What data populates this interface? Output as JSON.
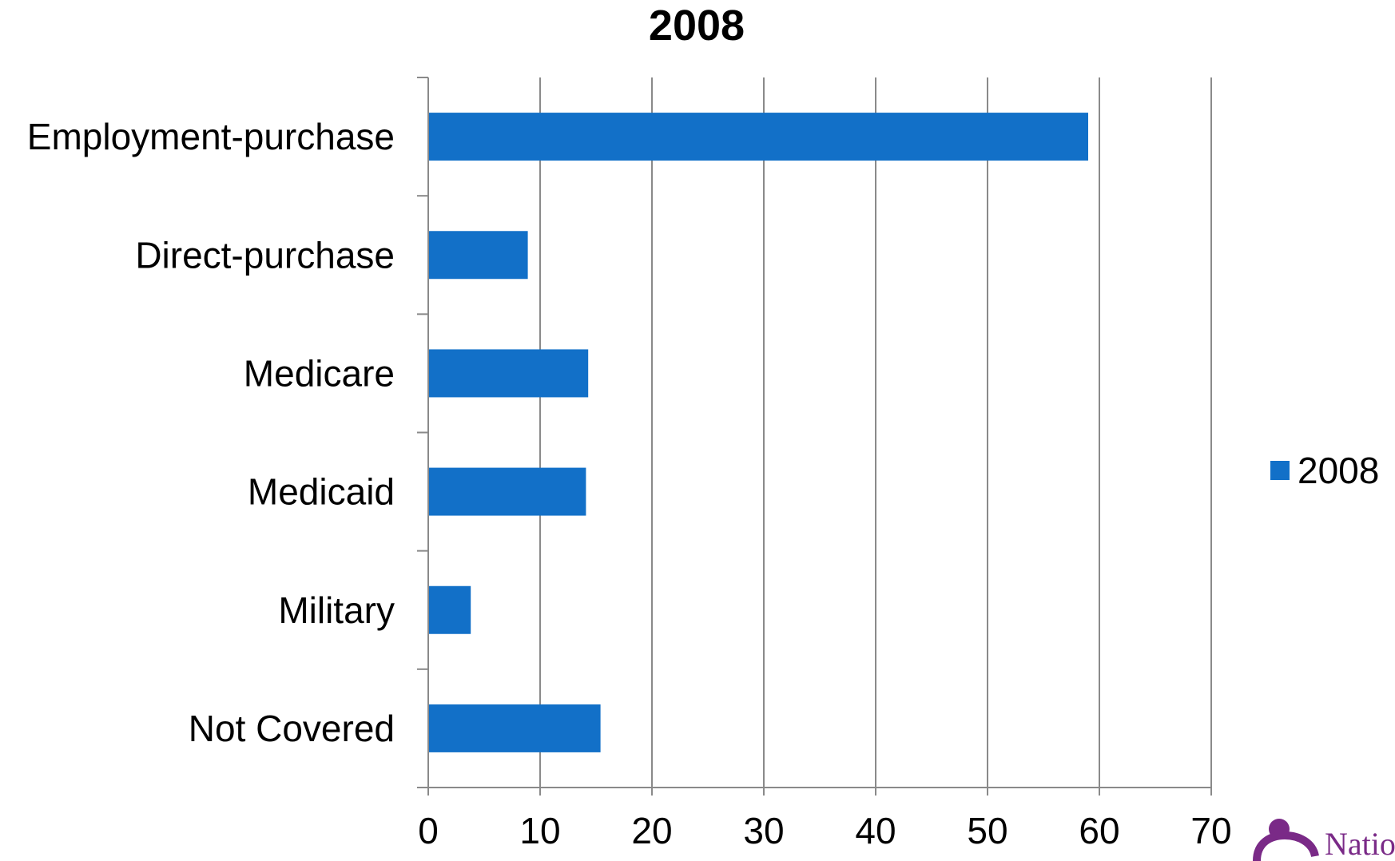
{
  "chart_data": {
    "type": "bar",
    "orientation": "horizontal",
    "title": "2008",
    "categories": [
      "Employment-purchase",
      "Direct-purchase",
      "Medicare",
      "Medicaid",
      "Military",
      "Not Covered"
    ],
    "series": [
      {
        "name": "2008",
        "values": [
          59,
          8.9,
          14.3,
          14.1,
          3.8,
          15.4
        ],
        "color": "#1270C8"
      }
    ],
    "xlim": [
      0,
      70
    ],
    "xticks": [
      0,
      10,
      20,
      30,
      40,
      50,
      60,
      70
    ],
    "xtick_labels": [
      "0",
      "10",
      "20",
      "30",
      "40",
      "50",
      "60",
      "70"
    ],
    "grid": "vertical",
    "legend_position": "right"
  },
  "logo": {
    "text": "Natio",
    "color": "#7a2a87"
  }
}
